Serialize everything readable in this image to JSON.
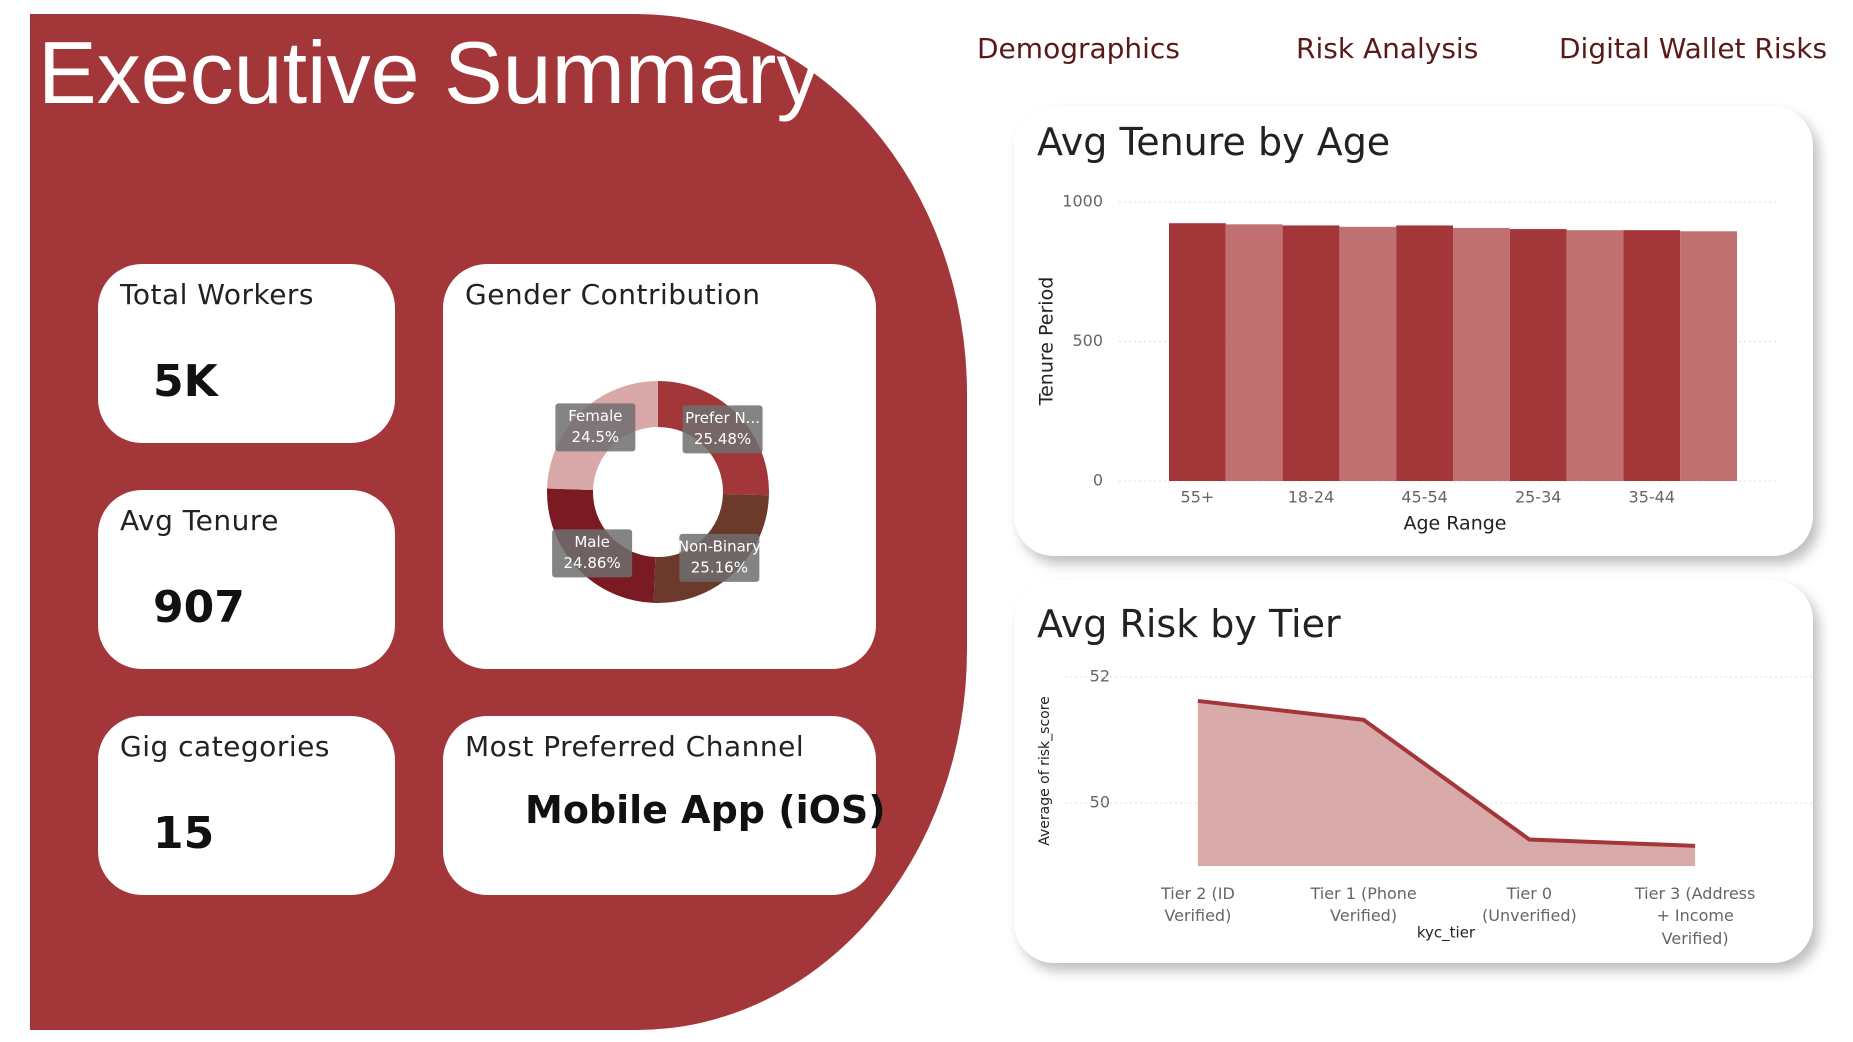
{
  "title": "Executive Summary",
  "nav": [
    "Demographics",
    "Risk Analysis",
    "Digital Wallet Risks"
  ],
  "cards": [
    {
      "label": "Total Workers",
      "value": "5K"
    },
    {
      "label": "Avg Tenure",
      "value": 907
    },
    {
      "label": "Gig categories",
      "value": 15
    },
    {
      "label": "Most Preferred Channel",
      "value": "Mobile App (iOS)"
    }
  ],
  "chart_data": [
    {
      "type": "pie",
      "title": "Gender Contribution",
      "donut": true,
      "categories": [
        "Prefer N...",
        "Non-Binary",
        "Male",
        "Female"
      ],
      "values": [
        25.48,
        25.16,
        24.86,
        24.5
      ],
      "value_labels": [
        "25.48%",
        "25.16%",
        "24.86%",
        "24.5%"
      ],
      "colors": [
        "#a33639",
        "#6b3a2a",
        "#7a1a22",
        "#d9a8a8"
      ]
    },
    {
      "type": "bar",
      "title": "Avg Tenure by Age",
      "x_label": "Age Range",
      "y_label": "Tenure Period",
      "categories": [
        "55+",
        null,
        "18-24",
        null,
        "45-54",
        null,
        "25-34",
        null,
        "35-44",
        null
      ],
      "values": [
        924,
        920,
        916,
        911,
        916,
        907,
        903,
        899,
        899,
        895
      ],
      "colors": [
        "#a33639",
        "#c07070",
        "#a33639",
        "#c07070",
        "#a33639",
        "#c07070",
        "#a33639",
        "#c07070",
        "#a33639",
        "#c07070"
      ],
      "ylim": [
        0,
        1000
      ],
      "yticks": [
        0,
        500,
        1000
      ],
      "grid": true
    },
    {
      "type": "area",
      "title": "Avg Risk by Tier",
      "x_label": "kyc_tier",
      "y_label": "Average of risk_score",
      "categories": [
        "Tier 2 (ID Verified)",
        "Tier 1 (Phone Verified)",
        "Tier 0 (Unverified)",
        "Tier 3 (Address + Income Verified)"
      ],
      "values": [
        51.62,
        51.32,
        49.42,
        49.32
      ],
      "color": "#a33639",
      "fill": "#d9aaaa",
      "ylim": [
        49,
        52
      ],
      "yticks": [
        50,
        52
      ],
      "grid": true
    }
  ]
}
